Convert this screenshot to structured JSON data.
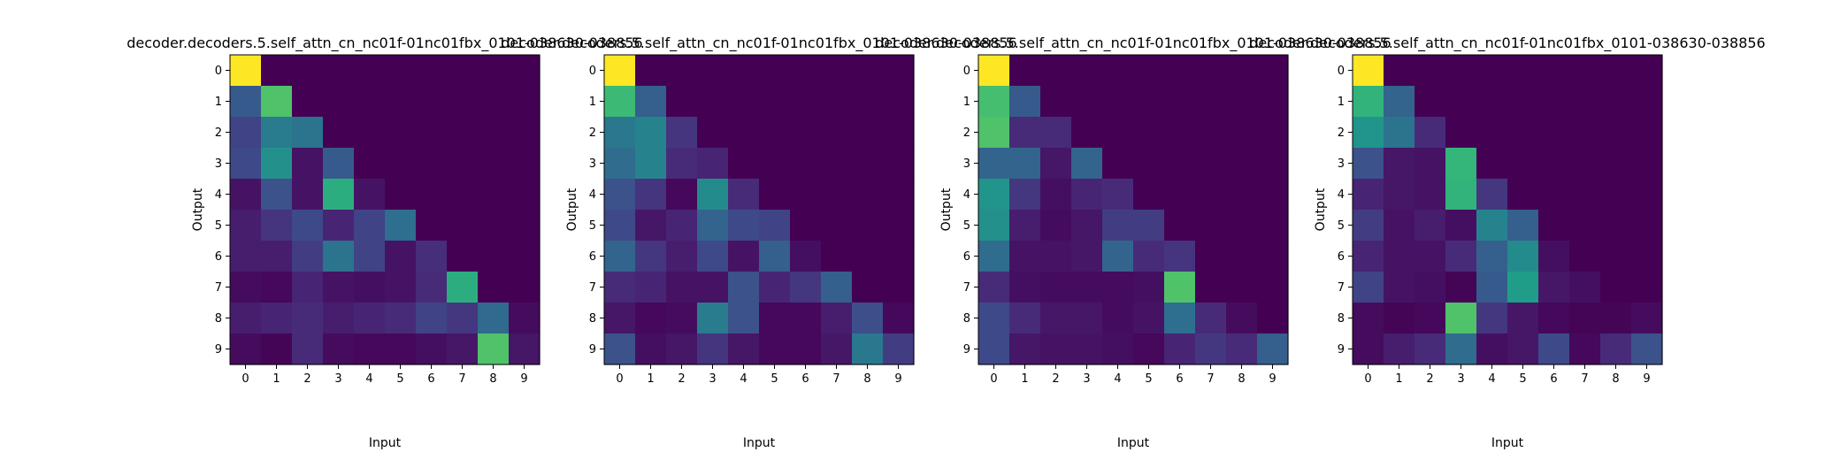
{
  "chart_data": [
    {
      "type": "heatmap",
      "title": "decoder.decoders.5.self_attn_cn_nc01f-01nc01fbx_0101-038630-038856",
      "xlabel": "Input",
      "ylabel": "Output",
      "x_ticks": [
        "0",
        "1",
        "2",
        "3",
        "4",
        "5",
        "6",
        "7",
        "8",
        "9"
      ],
      "y_ticks": [
        "0",
        "1",
        "2",
        "3",
        "4",
        "5",
        "6",
        "7",
        "8",
        "9"
      ],
      "colormap": "viridis",
      "value_range": [
        0,
        1
      ],
      "grid": false,
      "values": [
        [
          1.0,
          0,
          0,
          0,
          0,
          0,
          0,
          0,
          0,
          0
        ],
        [
          0.28,
          0.72,
          0,
          0,
          0,
          0,
          0,
          0,
          0,
          0
        ],
        [
          0.2,
          0.42,
          0.38,
          0,
          0,
          0,
          0,
          0,
          0,
          0
        ],
        [
          0.22,
          0.5,
          0.05,
          0.28,
          0,
          0,
          0,
          0,
          0,
          0
        ],
        [
          0.05,
          0.25,
          0.05,
          0.62,
          0.05,
          0,
          0,
          0,
          0,
          0
        ],
        [
          0.08,
          0.15,
          0.22,
          0.1,
          0.2,
          0.36,
          0,
          0,
          0,
          0
        ],
        [
          0.08,
          0.08,
          0.18,
          0.38,
          0.2,
          0.05,
          0.13,
          0,
          0,
          0
        ],
        [
          0.03,
          0.02,
          0.1,
          0.05,
          0.04,
          0.05,
          0.12,
          0.62,
          0,
          0
        ],
        [
          0.08,
          0.1,
          0.12,
          0.08,
          0.1,
          0.12,
          0.2,
          0.16,
          0.34,
          0.03
        ],
        [
          0.03,
          0.01,
          0.12,
          0.03,
          0.02,
          0.02,
          0.04,
          0.06,
          0.72,
          0.06
        ]
      ]
    },
    {
      "type": "heatmap",
      "title": "decoder.decoders.5.self_attn_cn_nc01f-01nc01fbx_0101-038630-038856",
      "xlabel": "Input",
      "ylabel": "Output",
      "x_ticks": [
        "0",
        "1",
        "2",
        "3",
        "4",
        "5",
        "6",
        "7",
        "8",
        "9"
      ],
      "y_ticks": [
        "0",
        "1",
        "2",
        "3",
        "4",
        "5",
        "6",
        "7",
        "8",
        "9"
      ],
      "colormap": "viridis",
      "value_range": [
        0,
        1
      ],
      "grid": false,
      "values": [
        [
          1.0,
          0,
          0,
          0,
          0,
          0,
          0,
          0,
          0,
          0
        ],
        [
          0.68,
          0.3,
          0,
          0,
          0,
          0,
          0,
          0,
          0,
          0
        ],
        [
          0.4,
          0.45,
          0.15,
          0,
          0,
          0,
          0,
          0,
          0,
          0
        ],
        [
          0.35,
          0.45,
          0.12,
          0.1,
          0,
          0,
          0,
          0,
          0,
          0
        ],
        [
          0.25,
          0.15,
          0.02,
          0.48,
          0.12,
          0,
          0,
          0,
          0,
          0
        ],
        [
          0.22,
          0.06,
          0.1,
          0.32,
          0.22,
          0.2,
          0,
          0,
          0,
          0
        ],
        [
          0.32,
          0.16,
          0.08,
          0.22,
          0.05,
          0.3,
          0.04,
          0,
          0,
          0
        ],
        [
          0.12,
          0.1,
          0.05,
          0.05,
          0.25,
          0.1,
          0.16,
          0.3,
          0,
          0
        ],
        [
          0.06,
          0.02,
          0.03,
          0.42,
          0.25,
          0.02,
          0.02,
          0.08,
          0.24,
          0.02
        ],
        [
          0.25,
          0.04,
          0.06,
          0.15,
          0.06,
          0.02,
          0.02,
          0.06,
          0.4,
          0.18
        ]
      ]
    },
    {
      "type": "heatmap",
      "title": "decoder.decoders.5.self_attn_cn_nc01f-01nc01fbx_0101-038630-038856",
      "xlabel": "Input",
      "ylabel": "Output",
      "x_ticks": [
        "0",
        "1",
        "2",
        "3",
        "4",
        "5",
        "6",
        "7",
        "8",
        "9"
      ],
      "y_ticks": [
        "0",
        "1",
        "2",
        "3",
        "4",
        "5",
        "6",
        "7",
        "8",
        "9"
      ],
      "colormap": "viridis",
      "value_range": [
        0,
        1
      ],
      "grid": false,
      "values": [
        [
          1.0,
          0,
          0,
          0,
          0,
          0,
          0,
          0,
          0,
          0
        ],
        [
          0.7,
          0.28,
          0,
          0,
          0,
          0,
          0,
          0,
          0,
          0
        ],
        [
          0.72,
          0.12,
          0.12,
          0,
          0,
          0,
          0,
          0,
          0,
          0
        ],
        [
          0.32,
          0.32,
          0.06,
          0.32,
          0,
          0,
          0,
          0,
          0,
          0
        ],
        [
          0.52,
          0.16,
          0.04,
          0.1,
          0.12,
          0,
          0,
          0,
          0,
          0
        ],
        [
          0.5,
          0.08,
          0.03,
          0.06,
          0.18,
          0.18,
          0,
          0,
          0,
          0
        ],
        [
          0.35,
          0.05,
          0.05,
          0.06,
          0.32,
          0.12,
          0.15,
          0,
          0,
          0
        ],
        [
          0.12,
          0.04,
          0.03,
          0.03,
          0.03,
          0.04,
          0.72,
          0,
          0,
          0
        ],
        [
          0.22,
          0.12,
          0.06,
          0.06,
          0.03,
          0.05,
          0.36,
          0.12,
          0.03,
          0
        ],
        [
          0.22,
          0.06,
          0.05,
          0.05,
          0.04,
          0.02,
          0.1,
          0.16,
          0.12,
          0.3
        ]
      ]
    },
    {
      "type": "heatmap",
      "title": "decoder.decoders.5.self_attn_cn_nc01f-01nc01fbx_0101-038630-038856",
      "xlabel": "Input",
      "ylabel": "Output",
      "x_ticks": [
        "0",
        "1",
        "2",
        "3",
        "4",
        "5",
        "6",
        "7",
        "8",
        "9"
      ],
      "y_ticks": [
        "0",
        "1",
        "2",
        "3",
        "4",
        "5",
        "6",
        "7",
        "8",
        "9"
      ],
      "colormap": "viridis",
      "value_range": [
        0,
        1
      ],
      "grid": false,
      "values": [
        [
          1.0,
          0,
          0,
          0,
          0,
          0,
          0,
          0,
          0,
          0
        ],
        [
          0.65,
          0.32,
          0,
          0,
          0,
          0,
          0,
          0,
          0,
          0
        ],
        [
          0.52,
          0.38,
          0.12,
          0,
          0,
          0,
          0,
          0,
          0,
          0
        ],
        [
          0.25,
          0.06,
          0.05,
          0.66,
          0,
          0,
          0,
          0,
          0,
          0
        ],
        [
          0.1,
          0.06,
          0.05,
          0.65,
          0.16,
          0,
          0,
          0,
          0,
          0
        ],
        [
          0.18,
          0.05,
          0.08,
          0.04,
          0.45,
          0.3,
          0,
          0,
          0,
          0
        ],
        [
          0.1,
          0.05,
          0.05,
          0.12,
          0.3,
          0.48,
          0.04,
          0,
          0,
          0
        ],
        [
          0.2,
          0.05,
          0.04,
          0.01,
          0.28,
          0.55,
          0.06,
          0.04,
          0,
          0
        ],
        [
          0.03,
          0.01,
          0.02,
          0.72,
          0.16,
          0.06,
          0.02,
          0.01,
          0.01,
          0.03
        ],
        [
          0.03,
          0.08,
          0.12,
          0.35,
          0.04,
          0.06,
          0.22,
          0.02,
          0.12,
          0.25
        ]
      ]
    }
  ]
}
